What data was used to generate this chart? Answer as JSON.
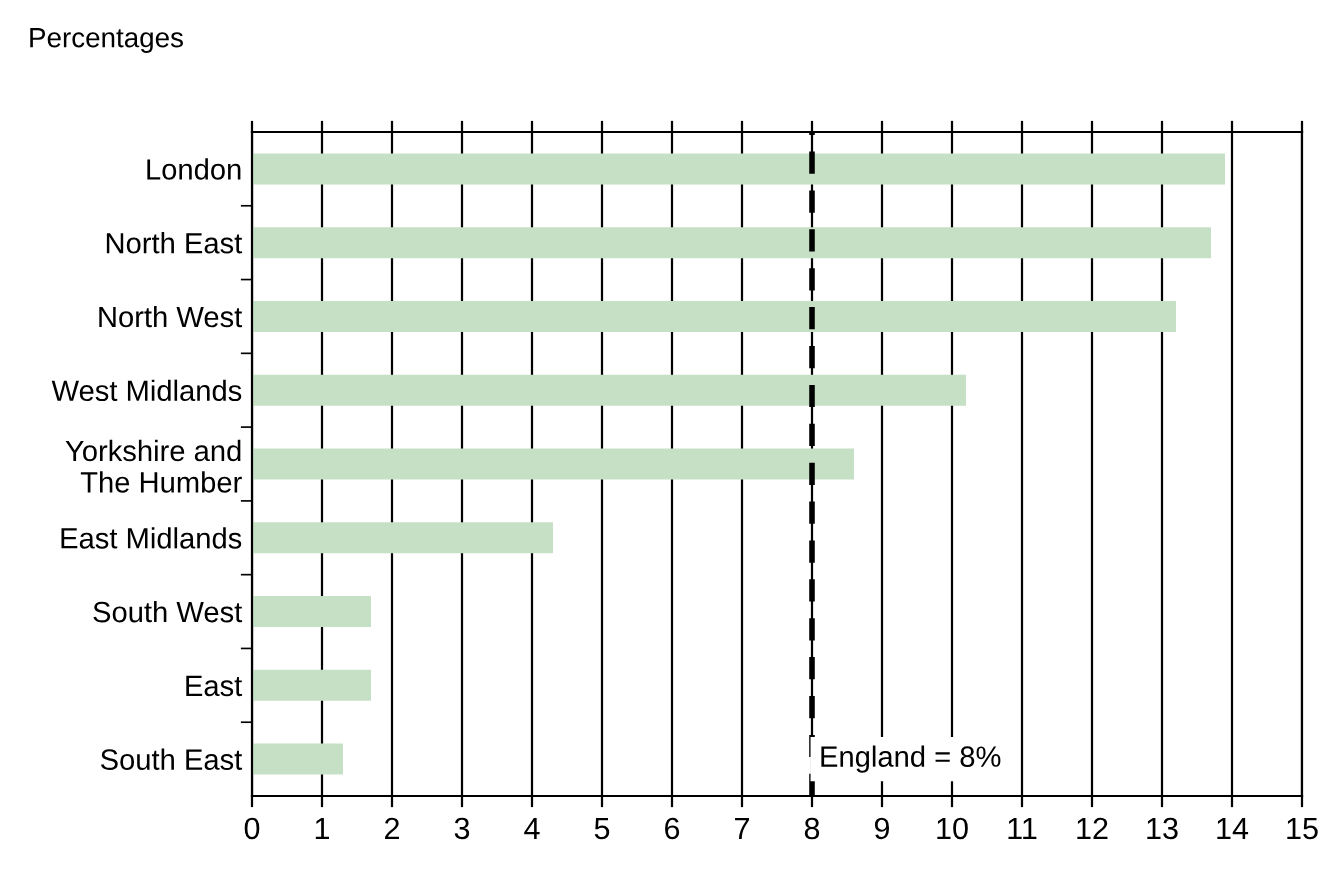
{
  "chart_data": {
    "type": "bar",
    "orientation": "horizontal",
    "xlabel": "Percentages",
    "categories": [
      "London",
      "North East",
      "North West",
      "West Midlands",
      "Yorkshire and\nThe Humber",
      "East Midlands",
      "South West",
      "East",
      "South East"
    ],
    "values": [
      13.9,
      13.7,
      13.2,
      10.2,
      8.6,
      4.3,
      1.7,
      1.7,
      1.3
    ],
    "color": "#c6e0c6",
    "xlim": [
      0,
      15
    ],
    "xticks": [
      0,
      1,
      2,
      3,
      4,
      5,
      6,
      7,
      8,
      9,
      10,
      11,
      12,
      13,
      14,
      15
    ],
    "grid": "x",
    "ref_lines": [
      {
        "axis": "x",
        "value": 8,
        "label": "England = 8%",
        "color": "#000000",
        "line_style": "dashed"
      }
    ]
  }
}
